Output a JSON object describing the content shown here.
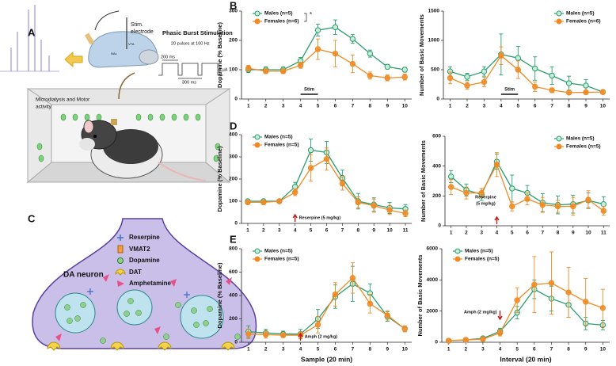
{
  "panel_labels": [
    "A",
    "B",
    "C",
    "D",
    "E"
  ],
  "panel_a": {
    "electrode_label": [
      "Stim.",
      "electrode"
    ],
    "region_labels": [
      "VTA",
      "NAc"
    ],
    "stim_title": "Phasic Burst Stimulation",
    "stim_subtitle": "20 pulses at 100 Hz",
    "pulse_width": "200 ms",
    "interval": "300 ms",
    "amplitude": "6 µA",
    "arena_label": [
      "Microdialysis and Motor",
      "activity"
    ]
  },
  "panel_c": {
    "cell_label": "DA neuron",
    "legend": [
      "Reserpine",
      "VMAT2",
      "Dopamine",
      "DAT",
      "Amphetamine"
    ]
  },
  "chart_data": [
    {
      "type": "line",
      "ylabel": "Dopamine (% Baseline)",
      "x": [
        1,
        2,
        3,
        4,
        5,
        6,
        7,
        8,
        9,
        10
      ],
      "xlim": [
        0.6,
        10.4
      ],
      "xticks": [
        1,
        2,
        3,
        4,
        5,
        6,
        7,
        8,
        9,
        10
      ],
      "ylim": [
        0,
        300
      ],
      "yticks": [
        0,
        100,
        200,
        300
      ],
      "legend": "upper left",
      "annotation": "Stim",
      "significance": "*",
      "series": [
        {
          "name": "Males (n=5)",
          "color": "#2a9d6f",
          "values": [
            100,
            100,
            100,
            130,
            235,
            245,
            205,
            155,
            110,
            100
          ],
          "errors": [
            10,
            10,
            10,
            12,
            20,
            25,
            15,
            12,
            8,
            8
          ]
        },
        {
          "name": "Females (n=6)",
          "color": "#f08a24",
          "values": [
            105,
            95,
            95,
            115,
            170,
            155,
            120,
            80,
            72,
            75
          ],
          "errors": [
            10,
            8,
            8,
            10,
            35,
            45,
            30,
            12,
            10,
            10
          ]
        }
      ]
    },
    {
      "type": "line",
      "ylabel": "Number of Basic Movements",
      "x": [
        1,
        2,
        3,
        4,
        5,
        6,
        7,
        8,
        9,
        10
      ],
      "xlim": [
        0.6,
        10.4
      ],
      "xticks": [
        1,
        2,
        3,
        4,
        5,
        6,
        7,
        8,
        9,
        10
      ],
      "ylim": [
        0,
        1500
      ],
      "yticks": [
        0,
        500,
        1000,
        1500
      ],
      "legend": "upper right",
      "annotation": "Stim",
      "series": [
        {
          "name": "Males (n=5)",
          "color": "#2a9d6f",
          "values": [
            470,
            380,
            470,
            760,
            700,
            520,
            400,
            270,
            230,
            120
          ],
          "errors": [
            80,
            60,
            80,
            350,
            200,
            200,
            150,
            120,
            100,
            30
          ]
        },
        {
          "name": "Females (n=6)",
          "color": "#f08a24",
          "values": [
            360,
            230,
            290,
            740,
            500,
            210,
            150,
            110,
            115,
            120
          ],
          "errors": [
            100,
            60,
            80,
            150,
            150,
            80,
            40,
            30,
            30,
            30
          ]
        }
      ]
    },
    {
      "type": "line",
      "ylabel": "Dopamine (% Baseline)",
      "x": [
        1,
        2,
        3,
        4,
        5,
        6,
        7,
        8,
        9,
        10,
        11
      ],
      "xlim": [
        0.6,
        11.4
      ],
      "xticks": [
        1,
        2,
        3,
        4,
        5,
        6,
        7,
        8,
        9,
        10,
        11
      ],
      "ylim": [
        0,
        400
      ],
      "yticks": [
        0,
        100,
        200,
        300,
        400
      ],
      "legend": "upper left",
      "annotation": "Reserpine (5 mg/kg)",
      "series": [
        {
          "name": "Males (n=5)",
          "color": "#2a9d6f",
          "values": [
            100,
            100,
            100,
            165,
            330,
            320,
            205,
            100,
            85,
            70,
            65
          ],
          "errors": [
            5,
            5,
            5,
            20,
            50,
            50,
            35,
            35,
            30,
            25,
            20
          ]
        },
        {
          "name": "Females (n=5)",
          "color": "#f08a24",
          "values": [
            95,
            95,
            100,
            140,
            250,
            290,
            180,
            95,
            80,
            60,
            45
          ],
          "errors": [
            5,
            5,
            5,
            15,
            60,
            50,
            30,
            25,
            30,
            20,
            15
          ]
        }
      ]
    },
    {
      "type": "line",
      "ylabel": "Number of Basic Movements",
      "x": [
        1,
        2,
        3,
        4,
        5,
        6,
        7,
        8,
        9,
        10,
        11
      ],
      "xlim": [
        0.6,
        11.4
      ],
      "xticks": [
        1,
        2,
        3,
        4,
        5,
        6,
        7,
        8,
        9,
        10,
        11
      ],
      "ylim": [
        0,
        600
      ],
      "yticks": [
        0,
        200,
        400,
        600
      ],
      "legend": "upper right",
      "annotation": [
        "Reserpine",
        "(5 mg/kg)"
      ],
      "series": [
        {
          "name": "Males (n=5)",
          "color": "#2a9d6f",
          "values": [
            330,
            240,
            210,
            430,
            250,
            220,
            155,
            140,
            145,
            170,
            145
          ],
          "errors": [
            40,
            40,
            40,
            50,
            90,
            50,
            60,
            60,
            60,
            50,
            50
          ]
        },
        {
          "name": "Females (n=5)",
          "color": "#f08a24",
          "values": [
            260,
            220,
            220,
            410,
            130,
            180,
            140,
            130,
            130,
            175,
            100
          ],
          "errors": [
            50,
            40,
            30,
            80,
            30,
            40,
            50,
            40,
            60,
            60,
            30
          ]
        }
      ]
    },
    {
      "type": "line",
      "ylabel": "Dopamine (% Baseline)",
      "xlabel": "Sample (20 min)",
      "x": [
        1,
        2,
        3,
        4,
        5,
        6,
        7,
        8,
        9,
        10
      ],
      "xlim": [
        0.6,
        10.4
      ],
      "xticks": [
        1,
        2,
        3,
        4,
        5,
        6,
        7,
        8,
        9,
        10
      ],
      "ylim": [
        0,
        800
      ],
      "yticks": [
        0,
        200,
        400,
        600,
        800
      ],
      "legend": "upper left",
      "annotation": "Amph (2 mg/kg)",
      "series": [
        {
          "name": "Males (n=5)",
          "color": "#2a9d6f",
          "values": [
            90,
            80,
            70,
            70,
            200,
            390,
            500,
            420,
            220,
            115
          ],
          "errors": [
            50,
            30,
            25,
            40,
            80,
            100,
            150,
            80,
            40,
            25
          ]
        },
        {
          "name": "Females (n=5)",
          "color": "#f08a24",
          "values": [
            70,
            65,
            60,
            60,
            150,
            410,
            550,
            330,
            230,
            115
          ],
          "errors": [
            40,
            30,
            20,
            30,
            70,
            100,
            130,
            80,
            40,
            25
          ]
        }
      ]
    },
    {
      "type": "line",
      "ylabel": "Number of Basic Movements",
      "xlabel": "Interval (20 min)",
      "x": [
        1,
        2,
        3,
        4,
        5,
        6,
        7,
        8,
        9,
        10
      ],
      "xlim": [
        0.6,
        10.4
      ],
      "xticks": [
        1,
        2,
        3,
        4,
        5,
        6,
        7,
        8,
        9,
        10
      ],
      "ylim": [
        0,
        6000
      ],
      "yticks": [
        0,
        2000,
        4000,
        6000
      ],
      "legend": "upper left",
      "annotation": "Amph (2 mg/kg)",
      "series": [
        {
          "name": "Males (n=5)",
          "color": "#2a9d6f",
          "values": [
            100,
            150,
            250,
            700,
            1900,
            3400,
            2800,
            2400,
            1200,
            1100
          ],
          "errors": [
            50,
            50,
            100,
            200,
            400,
            600,
            800,
            800,
            400,
            300
          ]
        },
        {
          "name": "Females (n=5)",
          "color": "#f08a24",
          "values": [
            100,
            150,
            200,
            600,
            2700,
            3700,
            3800,
            3200,
            2600,
            2200
          ],
          "errors": [
            50,
            50,
            80,
            200,
            800,
            1800,
            2000,
            1600,
            1500,
            1200
          ]
        }
      ]
    }
  ]
}
